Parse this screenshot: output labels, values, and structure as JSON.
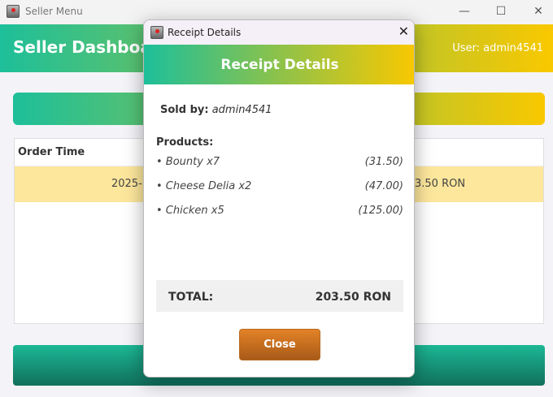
{
  "main_window": {
    "title": "Seller Menu",
    "controls": {
      "minimize": "—",
      "maximize": "☐",
      "close": "✕"
    },
    "header": {
      "title": "Seller Dashboard",
      "user": "User: admin4541"
    },
    "table": {
      "columns": [
        "Order Time"
      ],
      "rows": [
        {
          "order_time": "2025-",
          "total": "3.50 RON"
        }
      ]
    }
  },
  "dialog": {
    "title": "Receipt Details",
    "close_glyph": "✕",
    "header": "Receipt Details",
    "sold_by_label": "Sold by:",
    "sold_by": "admin4541",
    "products_label": "Products:",
    "products": [
      {
        "name": "• Bounty x7",
        "price": "(31.50)"
      },
      {
        "name": "• Cheese Delia x2",
        "price": "(47.00)"
      },
      {
        "name": "• Chicken x5",
        "price": "(125.00)"
      }
    ],
    "total_label": "TOTAL:",
    "total_value": "203.50 RON",
    "close_button": "Close"
  },
  "colors": {
    "gradient_start": "#1dbf9a",
    "gradient_end": "#f9c800",
    "row_highlight": "#fde79c",
    "close_button": "#e38227"
  }
}
